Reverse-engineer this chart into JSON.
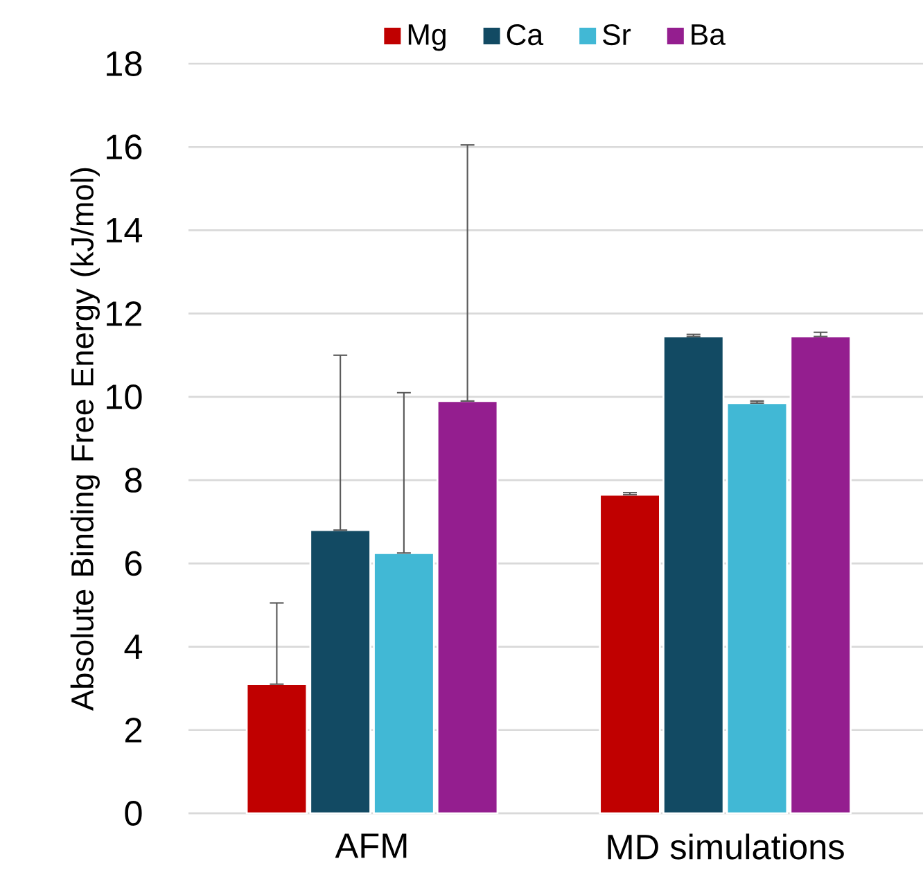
{
  "chart_data": {
    "type": "bar",
    "ylabel": "Absolute Binding Free Energy (kJ/mol)",
    "categories": [
      "AFM",
      "MD simulations"
    ],
    "ylim": [
      0,
      18
    ],
    "yticks": [
      0,
      2,
      4,
      6,
      8,
      10,
      12,
      14,
      16,
      18
    ],
    "grid": "y",
    "legend": "top",
    "series": [
      {
        "name": "Mg",
        "color": "#c00000",
        "values": [
          3.1,
          7.65
        ],
        "errors": [
          [
            3.1,
            5.05
          ],
          [
            7.65,
            7.7
          ]
        ]
      },
      {
        "name": "Ca",
        "color": "#124a63",
        "values": [
          6.8,
          11.45
        ],
        "errors": [
          [
            6.8,
            11.0
          ],
          [
            11.45,
            11.5
          ]
        ]
      },
      {
        "name": "Sr",
        "color": "#41b8d5",
        "values": [
          6.25,
          9.85
        ],
        "errors": [
          [
            6.25,
            10.1
          ],
          [
            9.85,
            9.9
          ]
        ]
      },
      {
        "name": "Ba",
        "color": "#941e8f",
        "values": [
          9.9,
          11.45
        ],
        "errors": [
          [
            9.9,
            16.05
          ],
          [
            11.45,
            11.55
          ]
        ]
      }
    ]
  }
}
